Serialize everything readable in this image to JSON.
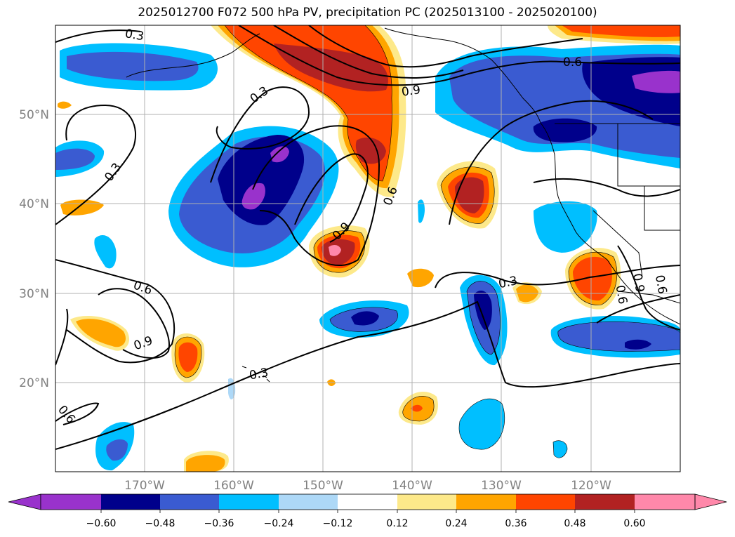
{
  "title": "2025012700 F072 500 hPa PV, precipitation PC (2025013100 - 2025020100)",
  "map": {
    "lat_labels": [
      "50°N",
      "40°N",
      "30°N",
      "20°N"
    ],
    "lon_labels": [
      "170°W",
      "160°W",
      "150°W",
      "140°W",
      "130°W",
      "120°W"
    ],
    "gridline_color": "#b0b0b0",
    "axis_label_color": "#808080"
  },
  "contour_labels": [
    "0.3",
    "0.6",
    "0.9",
    "0.3",
    "0.3",
    "0.6",
    "0.9",
    "0.6",
    "0.9",
    "0.6",
    "0.3",
    "0.9",
    "0.3",
    "0.6",
    "0.6"
  ],
  "colorbar": {
    "ticks": [
      "−0.60",
      "−0.48",
      "−0.36",
      "−0.24",
      "−0.12",
      "0.12",
      "0.24",
      "0.36",
      "0.48",
      "0.60"
    ],
    "colors": [
      "#9932cc",
      "#00008b",
      "#3a5bd1",
      "#00bfff",
      "#add8f7",
      "#ffffff",
      "#fde98a",
      "#ffa500",
      "#ff4500",
      "#b22222",
      "#ff88aa"
    ]
  },
  "palette": {
    "neg60": "#9932cc",
    "neg48": "#00008b",
    "neg36": "#3a5bd1",
    "neg24": "#00bfff",
    "neg12": "#add8f7",
    "pos12": "#fde98a",
    "pos24": "#ffa500",
    "pos36": "#ff4500",
    "pos48": "#b22222",
    "pos60": "#ff88aa"
  }
}
